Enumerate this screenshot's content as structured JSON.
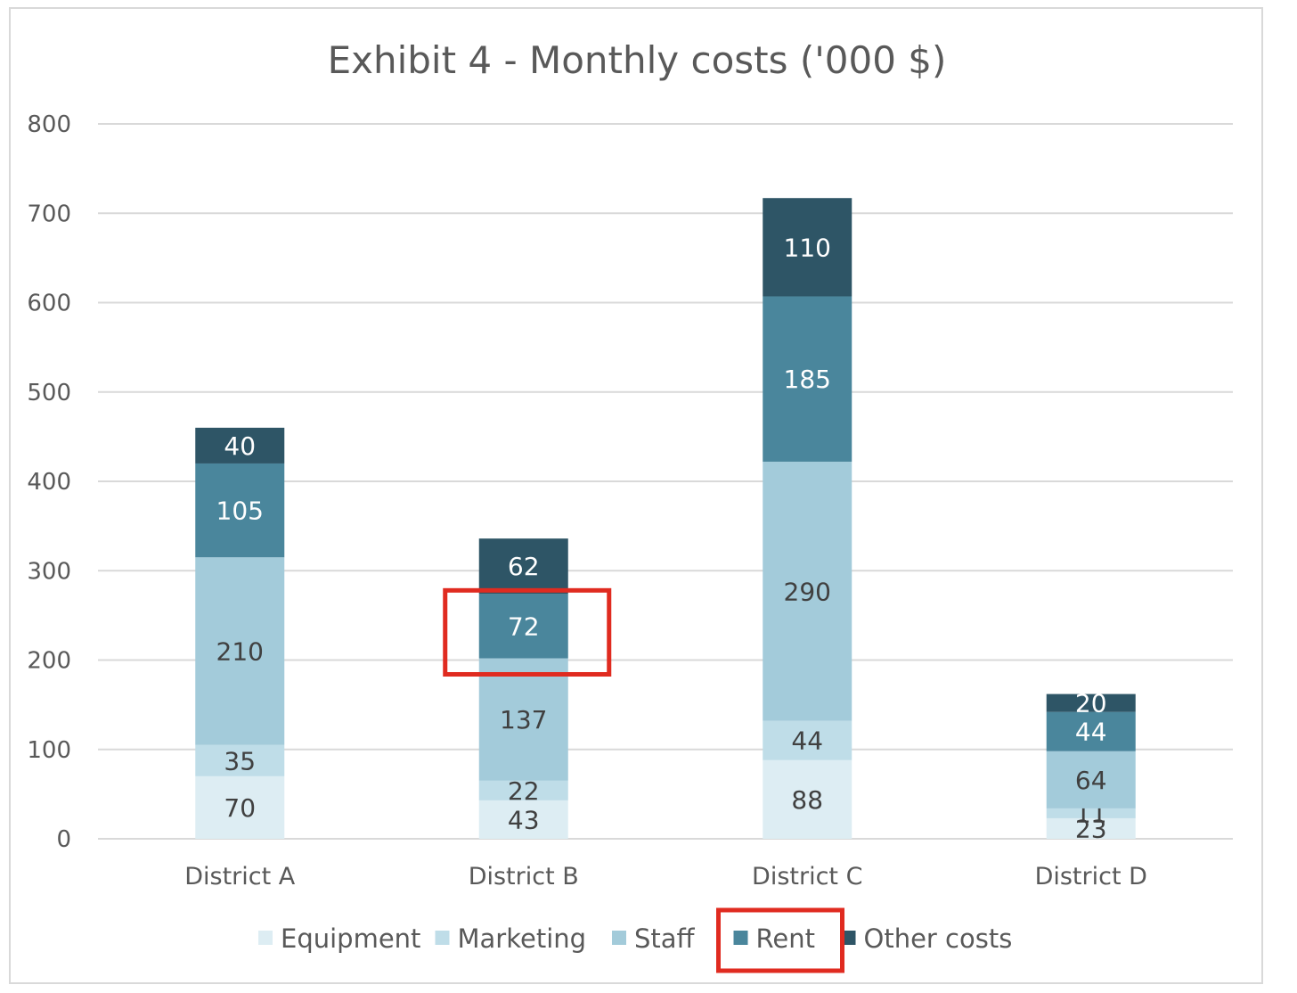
{
  "chart_data": {
    "type": "bar",
    "stacked": true,
    "title": "Exhibit 4 - Monthly costs ('000 $)",
    "xlabel": "",
    "ylabel": "",
    "categories": [
      "District A",
      "District B",
      "District C",
      "District D"
    ],
    "ylim": [
      0,
      800
    ],
    "yticks": [
      0,
      100,
      200,
      300,
      400,
      500,
      600,
      700,
      800
    ],
    "grid": true,
    "legend_position": "bottom",
    "series": [
      {
        "name": "Equipment",
        "values": [
          70,
          43,
          88,
          23
        ],
        "color": "#ddedf3",
        "label_color": "#404040"
      },
      {
        "name": "Marketing",
        "values": [
          35,
          22,
          44,
          11
        ],
        "color": "#bfdde8",
        "label_color": "#404040"
      },
      {
        "name": "Staff",
        "values": [
          210,
          137,
          290,
          64
        ],
        "color": "#a3cbda",
        "label_color": "#404040"
      },
      {
        "name": "Rent",
        "values": [
          105,
          72,
          185,
          44
        ],
        "color": "#4a869c",
        "label_color": "#ffffff"
      },
      {
        "name": "Other costs",
        "values": [
          40,
          62,
          110,
          20
        ],
        "color": "#2e5566",
        "label_color": "#ffffff"
      }
    ],
    "annotations": [
      {
        "type": "highlight-box",
        "target": "District B Rent segment",
        "color": "#e02b20"
      },
      {
        "type": "highlight-box",
        "target": "Rent legend entry",
        "color": "#e02b20"
      }
    ]
  }
}
